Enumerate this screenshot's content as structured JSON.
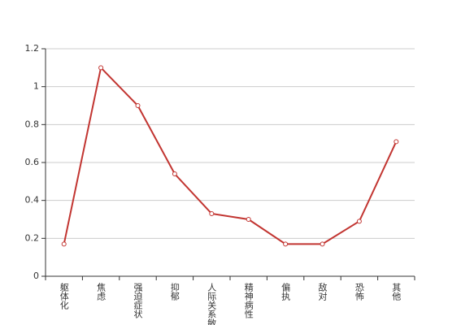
{
  "chart_data": {
    "type": "line",
    "categories": [
      "躯体化",
      "焦虑",
      "强迫症状",
      "抑郁",
      "人际关系敏感",
      "精神病性",
      "偏执",
      "敌对",
      "恐怖",
      "其他"
    ],
    "series": [
      {
        "color": "#c23531",
        "values": [
          0.17,
          1.1,
          0.9,
          0.54,
          0.33,
          0.3,
          0.17,
          0.17,
          0.29,
          0.71
        ]
      }
    ],
    "ylim": [
      0,
      1.2
    ],
    "yticks": [
      0,
      0.2,
      0.4,
      0.6,
      0.8,
      1,
      1.2
    ],
    "grid": true
  }
}
